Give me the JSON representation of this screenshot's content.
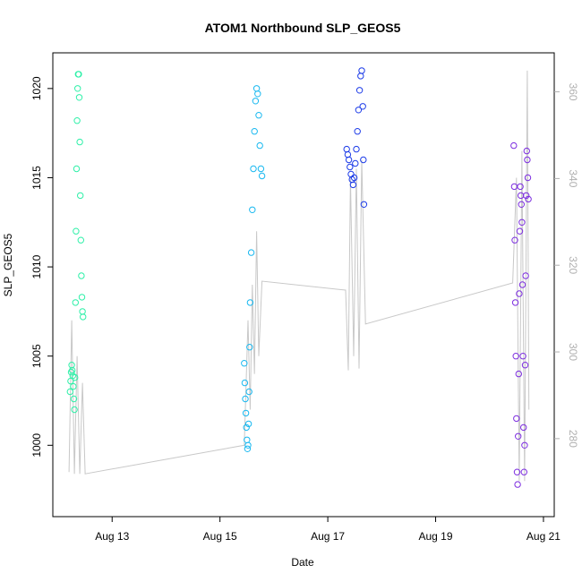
{
  "chart_data": {
    "type": "scatter",
    "title": "ATOM1 Northbound SLP_GEOS5",
    "xlabel": "Date",
    "ylabel": "SLP_GEOS5",
    "x_ticks": [
      "Aug 13",
      "Aug 15",
      "Aug 17",
      "Aug 19",
      "Aug 21"
    ],
    "x_tick_values": [
      13,
      15,
      17,
      19,
      21
    ],
    "xlim": [
      11.9,
      21.2
    ],
    "ylim": [
      996.0,
      1022.0
    ],
    "y_ticks": [
      1000,
      1005,
      1010,
      1015,
      1020
    ],
    "y2lim": [
      262.0,
      369.0
    ],
    "y2_ticks": [
      280,
      300,
      320,
      340,
      360
    ],
    "y2_color": "#b0b0b0",
    "grid": false,
    "segments": [
      {
        "name": "",
        "color": "#2ef0a8",
        "points": [
          [
            12.22,
            1003.0
          ],
          [
            12.23,
            1003.6
          ],
          [
            12.24,
            1004.1
          ],
          [
            12.25,
            1004.5
          ],
          [
            12.26,
            1004.2
          ],
          [
            12.27,
            1003.9
          ],
          [
            12.28,
            1003.3
          ],
          [
            12.29,
            1002.6
          ],
          [
            12.3,
            1002.0
          ],
          [
            12.31,
            1003.8
          ],
          [
            12.32,
            1008.0
          ],
          [
            12.33,
            1012.0
          ],
          [
            12.34,
            1015.5
          ],
          [
            12.35,
            1018.2
          ],
          [
            12.36,
            1020.0
          ],
          [
            12.37,
            1020.8
          ],
          [
            12.38,
            1020.8
          ],
          [
            12.39,
            1019.5
          ],
          [
            12.4,
            1017.0
          ],
          [
            12.41,
            1014.0
          ],
          [
            12.42,
            1011.5
          ],
          [
            12.43,
            1009.5
          ],
          [
            12.44,
            1008.3
          ],
          [
            12.45,
            1007.5
          ],
          [
            12.46,
            1007.2
          ]
        ]
      },
      {
        "name": "",
        "color": "#18b8f0",
        "points": [
          [
            15.45,
            1004.6
          ],
          [
            15.46,
            1003.5
          ],
          [
            15.47,
            1002.6
          ],
          [
            15.48,
            1001.8
          ],
          [
            15.49,
            1001.0
          ],
          [
            15.5,
            1000.3
          ],
          [
            15.51,
            999.8
          ],
          [
            15.52,
            1000.0
          ],
          [
            15.53,
            1001.2
          ],
          [
            15.54,
            1003.0
          ],
          [
            15.55,
            1005.5
          ],
          [
            15.56,
            1008.0
          ],
          [
            15.58,
            1010.8
          ],
          [
            15.6,
            1013.2
          ],
          [
            15.62,
            1015.5
          ],
          [
            15.64,
            1017.6
          ],
          [
            15.66,
            1019.3
          ],
          [
            15.68,
            1020.0
          ],
          [
            15.7,
            1019.7
          ],
          [
            15.72,
            1018.5
          ],
          [
            15.74,
            1016.8
          ],
          [
            15.76,
            1015.5
          ],
          [
            15.78,
            1015.1
          ]
        ]
      },
      {
        "name": "",
        "color": "#1d3ce8",
        "points": [
          [
            17.35,
            1016.6
          ],
          [
            17.37,
            1016.3
          ],
          [
            17.39,
            1016.0
          ],
          [
            17.41,
            1015.6
          ],
          [
            17.43,
            1015.2
          ],
          [
            17.45,
            1014.9
          ],
          [
            17.47,
            1014.6
          ],
          [
            17.49,
            1015.0
          ],
          [
            17.51,
            1015.8
          ],
          [
            17.53,
            1016.6
          ],
          [
            17.55,
            1017.6
          ],
          [
            17.57,
            1018.8
          ],
          [
            17.59,
            1019.9
          ],
          [
            17.61,
            1020.7
          ],
          [
            17.63,
            1021.0
          ],
          [
            17.65,
            1019.0
          ],
          [
            17.66,
            1016.0
          ],
          [
            17.67,
            1013.5
          ]
        ]
      },
      {
        "name": "",
        "color": "#7d2ee0",
        "points": [
          [
            20.45,
            1016.8
          ],
          [
            20.46,
            1014.5
          ],
          [
            20.47,
            1011.5
          ],
          [
            20.48,
            1008.0
          ],
          [
            20.49,
            1005.0
          ],
          [
            20.5,
            1001.5
          ],
          [
            20.51,
            998.5
          ],
          [
            20.52,
            997.8
          ],
          [
            20.53,
            1000.5
          ],
          [
            20.54,
            1004.0
          ],
          [
            20.55,
            1008.5
          ],
          [
            20.56,
            1012.0
          ],
          [
            20.57,
            1014.5
          ],
          [
            20.58,
            1014.0
          ],
          [
            20.59,
            1013.5
          ],
          [
            20.6,
            1012.5
          ],
          [
            20.61,
            1009.0
          ],
          [
            20.62,
            1005.0
          ],
          [
            20.63,
            1001.0
          ],
          [
            20.64,
            998.5
          ],
          [
            20.65,
            1000.0
          ],
          [
            20.66,
            1004.5
          ],
          [
            20.67,
            1009.5
          ],
          [
            20.68,
            1014.0
          ],
          [
            20.69,
            1016.5
          ],
          [
            20.7,
            1016.0
          ],
          [
            20.71,
            1015.0
          ],
          [
            20.72,
            1013.8
          ]
        ]
      }
    ],
    "reference_line": {
      "name": "",
      "color": "#c8c8c8",
      "points": [
        [
          12.2,
          998.5
        ],
        [
          12.25,
          1007.0
        ],
        [
          12.3,
          998.4
        ],
        [
          12.35,
          1005.0
        ],
        [
          12.4,
          998.4
        ],
        [
          12.45,
          1003.5
        ],
        [
          12.5,
          998.4
        ],
        [
          15.45,
          1000.0
        ],
        [
          15.52,
          1007.0
        ],
        [
          15.56,
          1002.0
        ],
        [
          15.6,
          1009.0
        ],
        [
          15.64,
          1004.0
        ],
        [
          15.68,
          1012.0
        ],
        [
          15.72,
          1005.0
        ],
        [
          15.78,
          1009.2
        ],
        [
          17.33,
          1008.7
        ],
        [
          17.38,
          1004.2
        ],
        [
          17.42,
          1015.0
        ],
        [
          17.48,
          1005.0
        ],
        [
          17.53,
          1015.5
        ],
        [
          17.58,
          1004.3
        ],
        [
          17.63,
          1016.0
        ],
        [
          17.7,
          1006.8
        ],
        [
          20.43,
          1009.1
        ],
        [
          20.5,
          1015.0
        ],
        [
          20.55,
          998.0
        ],
        [
          20.6,
          1016.5
        ],
        [
          20.65,
          998.0
        ],
        [
          20.7,
          1021.0
        ],
        [
          20.73,
          1002.0
        ]
      ]
    }
  }
}
